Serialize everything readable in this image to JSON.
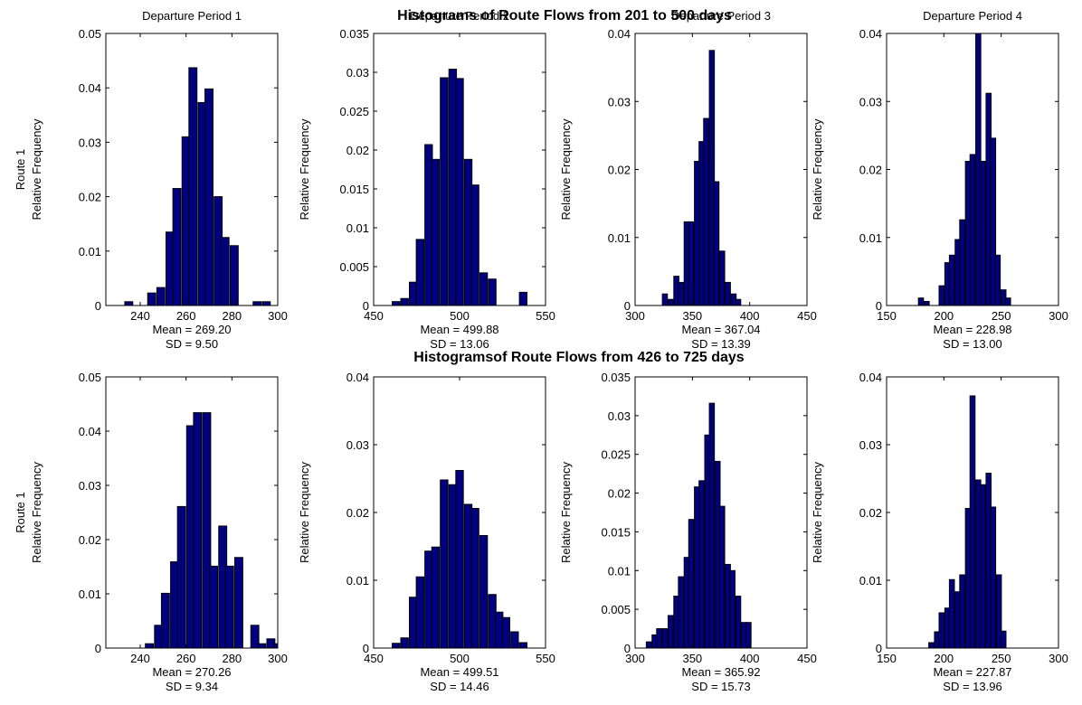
{
  "figure": {
    "row_titles": [
      "Histograms of Route Flows from 201 to 500 days",
      "Histogramsof Route Flows from 426 to 725 days"
    ],
    "column_titles": [
      "Departure Period 1",
      "Departure Period 2",
      "Departure Period 3",
      "Departure Period 4"
    ],
    "row_label": "Route 1",
    "ylabel": "Relative Frequency",
    "bar_color": "#000080",
    "bar_edge_color": "#000000"
  },
  "chart_data": [
    {
      "type": "bar",
      "row": 1,
      "column": 1,
      "title": "Departure Period 1",
      "ylabel": "Relative Frequency",
      "side_label": "Route 1",
      "xlim": [
        225,
        300
      ],
      "ylim": [
        0,
        0.05
      ],
      "xticks": [
        240,
        260,
        280,
        300
      ],
      "xtick_labels": [
        "240",
        "260",
        "280",
        "300"
      ],
      "yticks": [
        0,
        0.01,
        0.02,
        0.03,
        0.04,
        0.05
      ],
      "ytick_labels": [
        "0",
        "0.01",
        "0.02",
        "0.03",
        "0.04",
        "0.05"
      ],
      "bin_width": 3.5,
      "x": [
        235,
        245,
        249,
        253,
        256,
        260,
        263,
        267,
        270,
        274,
        277,
        281,
        284,
        288,
        291,
        295
      ],
      "values": [
        0.0007,
        0.0023,
        0.0033,
        0.0135,
        0.0215,
        0.031,
        0.0437,
        0.0373,
        0.0398,
        0.02,
        0.0125,
        0.011,
        0,
        0,
        0.0007,
        0.0007
      ],
      "stats": {
        "mean": "Mean = 269.20",
        "sd": "SD = 9.50"
      }
    },
    {
      "type": "bar",
      "row": 1,
      "column": 2,
      "title": "Departure Period 2",
      "ylabel": "Relative Frequency",
      "xlim": [
        450,
        550
      ],
      "ylim": [
        0,
        0.035
      ],
      "xticks": [
        450,
        500,
        550
      ],
      "xtick_labels": [
        "450",
        "500",
        "550"
      ],
      "yticks": [
        0,
        0.005,
        0.01,
        0.015,
        0.02,
        0.025,
        0.03,
        0.035
      ],
      "ytick_labels": [
        "0",
        "0.005",
        "0.01",
        "0.015",
        "0.02",
        "0.025",
        "0.03",
        "0.035"
      ],
      "bin_width": 4.4,
      "x": [
        463,
        468,
        473,
        477,
        482,
        486,
        491,
        496,
        500,
        505,
        509,
        514,
        519,
        523,
        527,
        532,
        537
      ],
      "values": [
        0.0005,
        0.0009,
        0.003,
        0.0085,
        0.0207,
        0.0188,
        0.0293,
        0.0304,
        0.0292,
        0.0188,
        0.0155,
        0.0042,
        0.0034,
        0,
        0,
        0,
        0.0017
      ],
      "stats": {
        "mean": "Mean = 499.88",
        "sd": "SD = 13.06"
      }
    },
    {
      "type": "bar",
      "row": 1,
      "column": 3,
      "title": "Departure Period 3",
      "ylabel": "Relative Frequency",
      "xlim": [
        300,
        450
      ],
      "ylim": [
        0,
        0.04
      ],
      "xticks": [
        300,
        350,
        400,
        450
      ],
      "xtick_labels": [
        "300",
        "350",
        "400",
        "450"
      ],
      "yticks": [
        0,
        0.01,
        0.02,
        0.03,
        0.04
      ],
      "ytick_labels": [
        "0",
        "0.01",
        "0.02",
        "0.03",
        "0.04"
      ],
      "bin_width": 4.4,
      "x": [
        326,
        331,
        336,
        340,
        345,
        349,
        354,
        358,
        362,
        367,
        371,
        376,
        381,
        386,
        390
      ],
      "values": [
        0.0017,
        0.0009,
        0.0043,
        0.0034,
        0.0123,
        0.0123,
        0.0212,
        0.0241,
        0.0275,
        0.0375,
        0.0182,
        0.008,
        0.0034,
        0.0017,
        0.0009
      ],
      "stats": {
        "mean": "Mean = 367.04",
        "sd": "SD = 13.39"
      }
    },
    {
      "type": "bar",
      "row": 1,
      "column": 4,
      "title": "Departure Period 4",
      "ylabel": "Relative Frequency",
      "xlim": [
        150,
        300
      ],
      "ylim": [
        0,
        0.04
      ],
      "xticks": [
        150,
        200,
        250,
        300
      ],
      "xtick_labels": [
        "150",
        "200",
        "250",
        "300"
      ],
      "yticks": [
        0,
        0.01,
        0.02,
        0.03,
        0.04
      ],
      "ytick_labels": [
        "0",
        "0.01",
        "0.02",
        "0.03",
        "0.04"
      ],
      "bin_width": 4.4,
      "x": [
        180,
        185,
        189,
        194,
        198,
        203,
        207,
        212,
        216,
        221,
        225,
        230,
        234,
        239,
        243,
        247,
        252,
        256
      ],
      "values": [
        0.0011,
        0.0006,
        0,
        0,
        0.0029,
        0.0063,
        0.0074,
        0.0097,
        0.0126,
        0.0212,
        0.0222,
        0.04,
        0.0212,
        0.0312,
        0.0246,
        0.0074,
        0.0023,
        0.0011
      ],
      "stats": {
        "mean": "Mean = 228.98",
        "sd": "SD = 13.00"
      }
    },
    {
      "type": "bar",
      "row": 2,
      "column": 1,
      "ylabel": "Relative Frequency",
      "side_label": "Route 1",
      "xlim": [
        225,
        300
      ],
      "ylim": [
        0,
        0.05
      ],
      "xticks": [
        240,
        260,
        280,
        300
      ],
      "xtick_labels": [
        "240",
        "260",
        "280",
        "300"
      ],
      "yticks": [
        0,
        0.01,
        0.02,
        0.03,
        0.04,
        0.05
      ],
      "ytick_labels": [
        "0",
        "0.01",
        "0.02",
        "0.03",
        "0.04",
        "0.05"
      ],
      "bin_width": 3.5,
      "x": [
        244,
        248,
        251,
        255,
        258,
        262,
        265,
        269,
        272,
        276,
        279,
        283,
        286,
        290,
        293,
        297,
        300
      ],
      "values": [
        0.0008,
        0.0042,
        0.0101,
        0.0159,
        0.0261,
        0.041,
        0.0434,
        0.0434,
        0.0151,
        0.0225,
        0.0151,
        0.0167,
        0,
        0.0042,
        0.0008,
        0.0017,
        0.0008
      ],
      "stats": {
        "mean": "Mean = 270.26",
        "sd": "SD = 9.34"
      }
    },
    {
      "type": "bar",
      "row": 2,
      "column": 2,
      "ylabel": "Relative Frequency",
      "xlim": [
        450,
        550
      ],
      "ylim": [
        0,
        0.04
      ],
      "xticks": [
        450,
        500,
        550
      ],
      "xtick_labels": [
        "450",
        "500",
        "550"
      ],
      "yticks": [
        0,
        0.01,
        0.02,
        0.03,
        0.04
      ],
      "ytick_labels": [
        "0",
        "0.01",
        "0.02",
        "0.03",
        "0.04"
      ],
      "bin_width": 4.4,
      "x": [
        463,
        468,
        473,
        477,
        482,
        486,
        491,
        496,
        500,
        505,
        509,
        514,
        519,
        523,
        527,
        532,
        537
      ],
      "values": [
        0.0007,
        0.0015,
        0.0075,
        0.0105,
        0.0143,
        0.0149,
        0.0248,
        0.0241,
        0.0262,
        0.0212,
        0.0206,
        0.0166,
        0.0079,
        0.0053,
        0.0045,
        0.0024,
        0.0008
      ],
      "stats": {
        "mean": "Mean = 499.51",
        "sd": "SD = 14.46"
      }
    },
    {
      "type": "bar",
      "row": 2,
      "column": 3,
      "ylabel": "Relative Frequency",
      "xlim": [
        300,
        450
      ],
      "ylim": [
        0,
        0.035
      ],
      "xticks": [
        300,
        350,
        400,
        450
      ],
      "xtick_labels": [
        "300",
        "350",
        "400",
        "450"
      ],
      "yticks": [
        0,
        0.005,
        0.01,
        0.015,
        0.02,
        0.025,
        0.03,
        0.035
      ],
      "ytick_labels": [
        "0",
        "0.005",
        "0.01",
        "0.015",
        "0.02",
        "0.025",
        "0.03",
        "0.035"
      ],
      "bin_width": 4.4,
      "x": [
        312,
        317,
        321,
        326,
        331,
        336,
        340,
        345,
        349,
        354,
        358,
        363,
        367,
        372,
        376,
        381,
        385,
        390,
        395,
        399
      ],
      "values": [
        0.0008,
        0.0017,
        0.0025,
        0.0025,
        0.0042,
        0.0067,
        0.0092,
        0.0117,
        0.0166,
        0.0208,
        0.0216,
        0.0275,
        0.0316,
        0.0241,
        0.0183,
        0.0108,
        0.01,
        0.0067,
        0.0033,
        0.0033
      ],
      "stats": {
        "mean": "Mean = 365.92",
        "sd": "SD = 15.73"
      }
    },
    {
      "type": "bar",
      "row": 2,
      "column": 4,
      "ylabel": "Relative Frequency",
      "xlim": [
        150,
        300
      ],
      "ylim": [
        0,
        0.04
      ],
      "xticks": [
        150,
        200,
        250,
        300
      ],
      "xtick_labels": [
        "150",
        "200",
        "250",
        "300"
      ],
      "yticks": [
        0,
        0.01,
        0.02,
        0.03,
        0.04
      ],
      "ytick_labels": [
        "0",
        "0.01",
        "0.02",
        "0.03",
        "0.04"
      ],
      "bin_width": 4.4,
      "x": [
        189,
        194,
        198,
        203,
        207,
        212,
        216,
        221,
        225,
        230,
        234,
        239,
        243,
        248,
        252
      ],
      "values": [
        0.0008,
        0.0024,
        0.0052,
        0.0059,
        0.0101,
        0.0083,
        0.0108,
        0.0206,
        0.0372,
        0.0248,
        0.0241,
        0.0258,
        0.0208,
        0.0108,
        0.0025
      ],
      "stats": {
        "mean": "Mean = 227.87",
        "sd": "SD = 13.96"
      }
    }
  ]
}
